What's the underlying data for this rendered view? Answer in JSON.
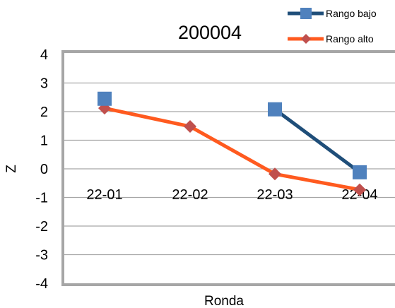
{
  "chart_data": {
    "type": "line",
    "title": "200004",
    "xlabel": "Ronda",
    "ylabel": "Z",
    "categories": [
      "22-01",
      "22-02",
      "22-03",
      "22-04"
    ],
    "ylim": [
      -4,
      4
    ],
    "yticks": [
      4,
      3,
      2,
      1,
      0,
      -1,
      -2,
      -3,
      -4
    ],
    "grid": true,
    "legend_position": "top-right",
    "series": [
      {
        "name": "Rango bajo",
        "marker": "square",
        "color": "#1f4e79",
        "marker_color": "#4f81bd",
        "values": [
          2.45,
          null,
          2.08,
          -0.12
        ]
      },
      {
        "name": "Rango alto",
        "marker": "diamond",
        "color": "#ff5a1f",
        "marker_color": "#c0504d",
        "values": [
          2.12,
          1.48,
          -0.18,
          -0.73
        ]
      }
    ]
  }
}
